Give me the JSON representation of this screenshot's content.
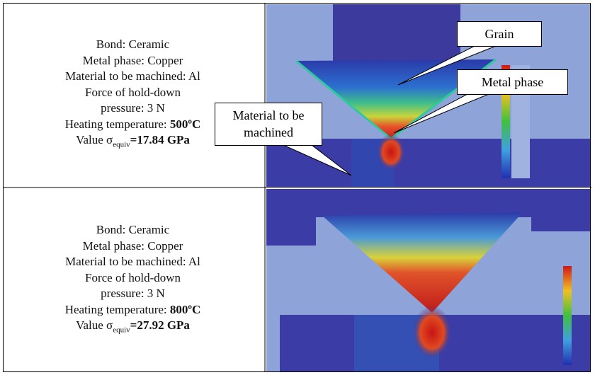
{
  "rows": [
    {
      "lines": [
        "Bond: Ceramic",
        "Metal phase: Copper",
        "Material to be machined: Al",
        "Force of hold-down",
        "pressure: 3 N"
      ],
      "heating_label": "Heating temperature: ",
      "heating_value": "500ºC",
      "value_label": "Value σ",
      "value_sub": "equiv",
      "value_result": "=17.84 GPa"
    },
    {
      "lines": [
        "Bond: Ceramic",
        "Metal phase: Copper",
        "Material to be machined: Al",
        "Force of hold-down",
        "pressure: 3 N"
      ],
      "heating_label": "Heating temperature: ",
      "heating_value": "800ºC",
      "value_label": "Value σ",
      "value_sub": "equiv",
      "value_result": "=27.92 GPa"
    }
  ],
  "callouts": [
    "Grain",
    "Metal phase",
    "Material to be machined"
  ]
}
